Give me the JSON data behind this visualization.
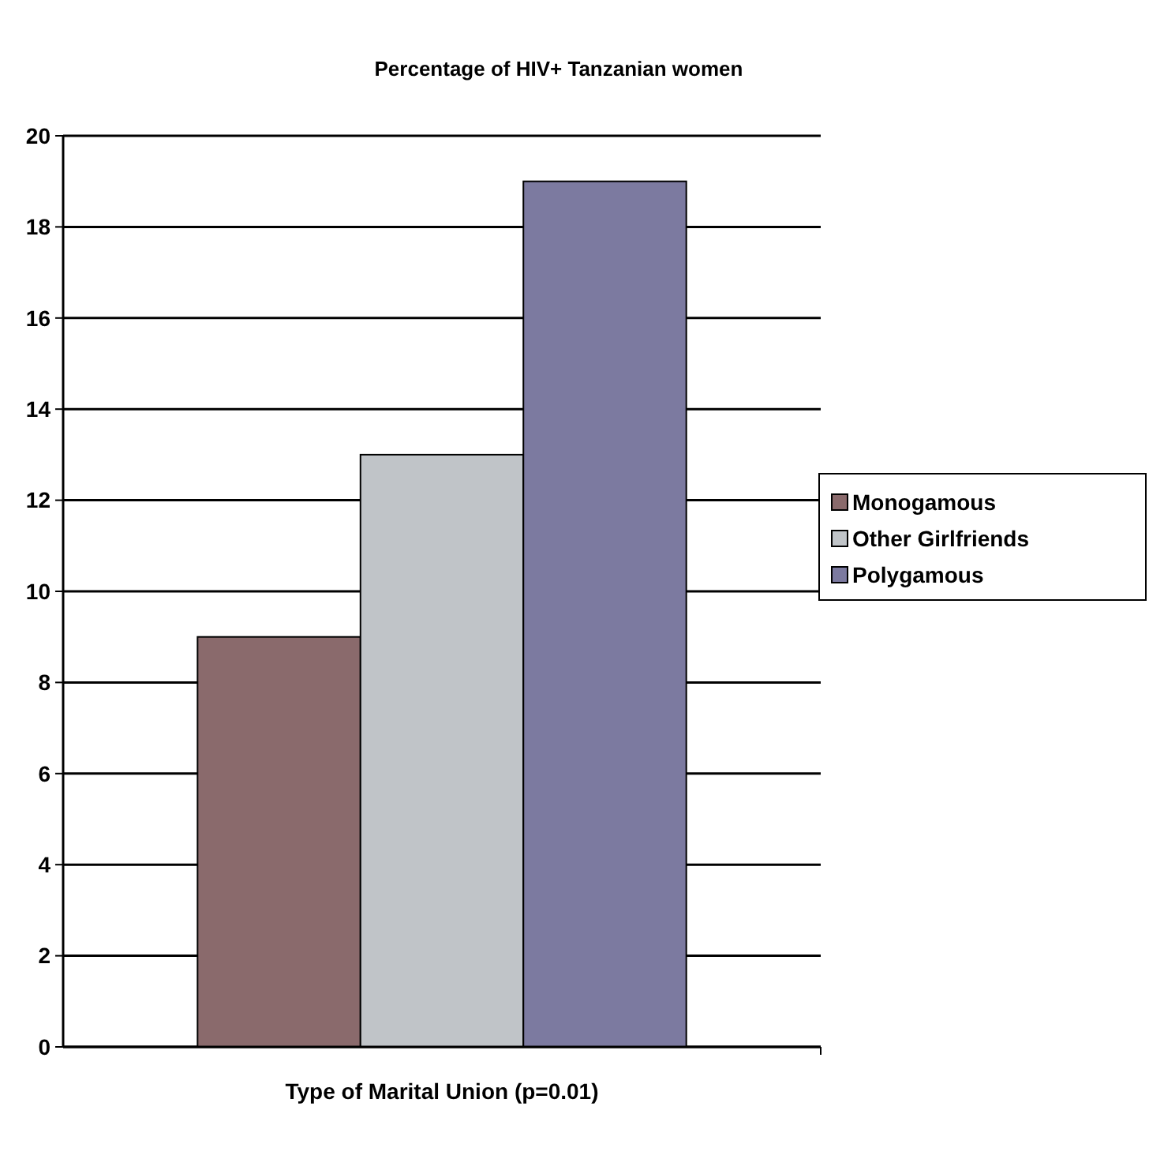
{
  "chart_data": {
    "type": "bar",
    "title": "Percentage of HIV+ Tanzanian women",
    "xlabel": "Type of Marital Union (p=0.01)",
    "categories": [
      null
    ],
    "series": [
      {
        "name": "Monogamous",
        "color": "#8a6a6c",
        "values": [
          9
        ]
      },
      {
        "name": "Other Girlfriends",
        "color": "#c0c4c8",
        "values": [
          13
        ]
      },
      {
        "name": "Polygamous",
        "color": "#7c7aa0",
        "values": [
          19
        ]
      }
    ],
    "ylim": [
      0,
      20
    ],
    "yticks": [
      0,
      2,
      4,
      6,
      8,
      10,
      12,
      14,
      16,
      18,
      20
    ],
    "grid": "y",
    "legend": "right"
  }
}
